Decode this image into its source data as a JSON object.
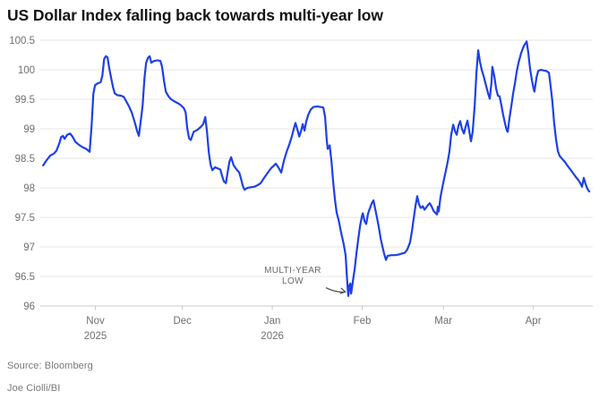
{
  "header": {
    "title": "US Dollar Index falling back towards multi-year low"
  },
  "footer": {
    "source": "Source: Bloomberg",
    "byline": "Joe Ciolli/BI"
  },
  "annotation": {
    "line1": "MULTI-YEAR",
    "line2": "LOW"
  },
  "colors": {
    "line": "#1c40e8",
    "grid": "#e5e5e5",
    "axis": "#c9c9c9",
    "tick_label": "#6f6f6f",
    "title": "#141414",
    "annotation_text": "#6a6a6a",
    "arrow": "#4a4a4a",
    "background": "#ffffff"
  },
  "chart_data": {
    "type": "line",
    "title": "US Dollar Index falling back towards multi-year low",
    "grid": "horizontal",
    "legend_position": "none",
    "x_unit": "days from chart start (mid-Oct 2025)",
    "xlim": [
      -1,
      189.5
    ],
    "ylim": [
      96,
      100.5
    ],
    "yticks": [
      {
        "value": 96,
        "label": "96"
      },
      {
        "value": 96.5,
        "label": "96.5"
      },
      {
        "value": 97,
        "label": "97"
      },
      {
        "value": 97.5,
        "label": "97.5"
      },
      {
        "value": 98,
        "label": "98"
      },
      {
        "value": 98.5,
        "label": "98.5"
      },
      {
        "value": 99,
        "label": "99"
      },
      {
        "value": 99.5,
        "label": "99.5"
      },
      {
        "value": 100,
        "label": "100"
      },
      {
        "value": 100.5,
        "label": "100.5"
      }
    ],
    "xticks": [
      {
        "day": 18,
        "label": "Nov",
        "year": "2025"
      },
      {
        "day": 48,
        "label": "Dec",
        "year": ""
      },
      {
        "day": 79,
        "label": "Jan",
        "year": "2026"
      },
      {
        "day": 110,
        "label": "Feb",
        "year": ""
      },
      {
        "day": 138,
        "label": "Mar",
        "year": ""
      },
      {
        "day": 169,
        "label": "Apr",
        "year": ""
      }
    ],
    "annotation": {
      "text": "MULTI-YEAR LOW",
      "arrow_from": [
        97.5,
        96.31
      ],
      "arrow_to": [
        104.2,
        96.24
      ],
      "points_at": "low of 96.17 in late January 2026"
    },
    "series": [
      {
        "name": "US Dollar Index",
        "points": [
          [
            0,
            98.38
          ],
          [
            1.2,
            98.47
          ],
          [
            2.5,
            98.55
          ],
          [
            3.7,
            98.58
          ],
          [
            4.6,
            98.63
          ],
          [
            5.6,
            98.76
          ],
          [
            6.2,
            98.86
          ],
          [
            6.8,
            98.88
          ],
          [
            7.4,
            98.83
          ],
          [
            8.3,
            98.9
          ],
          [
            9.3,
            98.92
          ],
          [
            10.2,
            98.86
          ],
          [
            11.1,
            98.78
          ],
          [
            12.3,
            98.73
          ],
          [
            13.6,
            98.69
          ],
          [
            14.8,
            98.66
          ],
          [
            16,
            98.61
          ],
          [
            16.7,
            99.05
          ],
          [
            17.3,
            99.6
          ],
          [
            17.9,
            99.74
          ],
          [
            18.8,
            99.77
          ],
          [
            19.8,
            99.79
          ],
          [
            20.4,
            99.9
          ],
          [
            21,
            100.18
          ],
          [
            21.6,
            100.23
          ],
          [
            22.2,
            100.21
          ],
          [
            22.8,
            100.02
          ],
          [
            23.5,
            99.84
          ],
          [
            24.1,
            99.7
          ],
          [
            24.7,
            99.6
          ],
          [
            25.6,
            99.57
          ],
          [
            26.9,
            99.56
          ],
          [
            27.8,
            99.54
          ],
          [
            28.7,
            99.46
          ],
          [
            29.6,
            99.38
          ],
          [
            30.6,
            99.27
          ],
          [
            31.5,
            99.12
          ],
          [
            32.4,
            98.96
          ],
          [
            33,
            98.88
          ],
          [
            33.6,
            99.12
          ],
          [
            34.3,
            99.4
          ],
          [
            34.9,
            99.85
          ],
          [
            35.5,
            100.12
          ],
          [
            36.1,
            100.2
          ],
          [
            36.7,
            100.23
          ],
          [
            37.3,
            100.12
          ],
          [
            38.3,
            100.15
          ],
          [
            39.5,
            100.16
          ],
          [
            40.4,
            100.15
          ],
          [
            41,
            100.05
          ],
          [
            41.7,
            99.8
          ],
          [
            42.3,
            99.63
          ],
          [
            43.2,
            99.55
          ],
          [
            44.1,
            99.5
          ],
          [
            45.4,
            99.46
          ],
          [
            46.6,
            99.43
          ],
          [
            47.5,
            99.4
          ],
          [
            48.5,
            99.35
          ],
          [
            49.1,
            99.28
          ],
          [
            49.7,
            99
          ],
          [
            50.3,
            98.84
          ],
          [
            50.9,
            98.81
          ],
          [
            51.9,
            98.95
          ],
          [
            53.1,
            98.98
          ],
          [
            54.3,
            99.03
          ],
          [
            55.2,
            99.08
          ],
          [
            55.9,
            99.2
          ],
          [
            56.5,
            98.95
          ],
          [
            57.1,
            98.6
          ],
          [
            57.7,
            98.4
          ],
          [
            58.3,
            98.3
          ],
          [
            59.3,
            98.35
          ],
          [
            60.2,
            98.33
          ],
          [
            61.1,
            98.31
          ],
          [
            61.7,
            98.2
          ],
          [
            62.3,
            98.11
          ],
          [
            63,
            98.08
          ],
          [
            63.6,
            98.26
          ],
          [
            64.2,
            98.44
          ],
          [
            64.8,
            98.52
          ],
          [
            65.7,
            98.38
          ],
          [
            66.7,
            98.31
          ],
          [
            67.6,
            98.26
          ],
          [
            68.2,
            98.16
          ],
          [
            68.8,
            98.04
          ],
          [
            69.4,
            97.97
          ],
          [
            70.4,
            98
          ],
          [
            71.6,
            98.01
          ],
          [
            72.8,
            98.02
          ],
          [
            74.1,
            98.05
          ],
          [
            75,
            98.08
          ],
          [
            75.9,
            98.15
          ],
          [
            76.9,
            98.22
          ],
          [
            77.8,
            98.28
          ],
          [
            78.7,
            98.34
          ],
          [
            79.6,
            98.38
          ],
          [
            80.2,
            98.41
          ],
          [
            81.2,
            98.34
          ],
          [
            82.1,
            98.26
          ],
          [
            83,
            98.46
          ],
          [
            84,
            98.62
          ],
          [
            84.9,
            98.74
          ],
          [
            85.8,
            98.88
          ],
          [
            86.4,
            99
          ],
          [
            87,
            99.1
          ],
          [
            87.7,
            98.98
          ],
          [
            88.3,
            98.87
          ],
          [
            88.9,
            98.96
          ],
          [
            89.5,
            99.08
          ],
          [
            90.1,
            98.97
          ],
          [
            90.7,
            99.12
          ],
          [
            91.4,
            99.24
          ],
          [
            92.3,
            99.33
          ],
          [
            93.2,
            99.37
          ],
          [
            94.4,
            99.38
          ],
          [
            95.7,
            99.37
          ],
          [
            96.6,
            99.36
          ],
          [
            97.2,
            99.2
          ],
          [
            97.8,
            98.8
          ],
          [
            98.1,
            98.66
          ],
          [
            98.8,
            98.72
          ],
          [
            99.4,
            98.45
          ],
          [
            100,
            98.1
          ],
          [
            100.6,
            97.8
          ],
          [
            101.2,
            97.58
          ],
          [
            101.9,
            97.45
          ],
          [
            102.5,
            97.3
          ],
          [
            103.1,
            97.16
          ],
          [
            103.7,
            97.03
          ],
          [
            104.3,
            96.85
          ],
          [
            104.6,
            96.6
          ],
          [
            105,
            96.3
          ],
          [
            105.2,
            96.17
          ],
          [
            105.6,
            96.35
          ],
          [
            105.9,
            96.38
          ],
          [
            106.2,
            96.21
          ],
          [
            106.8,
            96.42
          ],
          [
            107.4,
            96.62
          ],
          [
            108,
            96.88
          ],
          [
            108.6,
            97.12
          ],
          [
            109.3,
            97.36
          ],
          [
            109.9,
            97.52
          ],
          [
            110.2,
            97.57
          ],
          [
            110.8,
            97.44
          ],
          [
            111.4,
            97.39
          ],
          [
            112,
            97.56
          ],
          [
            112.7,
            97.66
          ],
          [
            113.3,
            97.74
          ],
          [
            113.9,
            97.79
          ],
          [
            114.5,
            97.64
          ],
          [
            115.1,
            97.5
          ],
          [
            115.7,
            97.34
          ],
          [
            116.4,
            97.14
          ],
          [
            117,
            97
          ],
          [
            117.6,
            96.88
          ],
          [
            118.2,
            96.78
          ],
          [
            118.8,
            96.85
          ],
          [
            120.1,
            96.86
          ],
          [
            121.3,
            96.86
          ],
          [
            122.5,
            96.87
          ],
          [
            123.8,
            96.89
          ],
          [
            124.7,
            96.9
          ],
          [
            125.6,
            96.96
          ],
          [
            126.5,
            97.08
          ],
          [
            127.2,
            97.28
          ],
          [
            127.8,
            97.5
          ],
          [
            128.4,
            97.7
          ],
          [
            129,
            97.86
          ],
          [
            129.6,
            97.72
          ],
          [
            130.2,
            97.66
          ],
          [
            130.9,
            97.69
          ],
          [
            131.5,
            97.63
          ],
          [
            132.1,
            97.67
          ],
          [
            132.7,
            97.71
          ],
          [
            133.3,
            97.74
          ],
          [
            134,
            97.68
          ],
          [
            134.6,
            97.61
          ],
          [
            135.2,
            97.58
          ],
          [
            135.8,
            97.55
          ],
          [
            136.1,
            97.68
          ],
          [
            136.4,
            97.6
          ],
          [
            137,
            97.85
          ],
          [
            137.7,
            98.02
          ],
          [
            138.3,
            98.17
          ],
          [
            138.9,
            98.3
          ],
          [
            139.5,
            98.45
          ],
          [
            140.1,
            98.62
          ],
          [
            140.7,
            98.9
          ],
          [
            141.4,
            99.07
          ],
          [
            142,
            98.96
          ],
          [
            142.6,
            98.9
          ],
          [
            143.2,
            99.05
          ],
          [
            143.8,
            99.13
          ],
          [
            144.4,
            99
          ],
          [
            145.1,
            98.92
          ],
          [
            145.7,
            99.04
          ],
          [
            146.3,
            99.14
          ],
          [
            146.9,
            98.97
          ],
          [
            147.5,
            98.79
          ],
          [
            148.1,
            98.95
          ],
          [
            148.8,
            99.4
          ],
          [
            149.4,
            99.95
          ],
          [
            150,
            100.33
          ],
          [
            150.6,
            100.14
          ],
          [
            151.2,
            100
          ],
          [
            151.9,
            99.89
          ],
          [
            152.8,
            99.72
          ],
          [
            153.4,
            99.6
          ],
          [
            154,
            99.51
          ],
          [
            154.6,
            99.8
          ],
          [
            154.9,
            100.05
          ],
          [
            155.6,
            99.88
          ],
          [
            156.2,
            99.68
          ],
          [
            156.8,
            99.56
          ],
          [
            157.4,
            99.55
          ],
          [
            158,
            99.4
          ],
          [
            158.6,
            99.24
          ],
          [
            159.3,
            99.08
          ],
          [
            159.9,
            98.97
          ],
          [
            160.2,
            98.95
          ],
          [
            160.8,
            99.18
          ],
          [
            161.4,
            99.38
          ],
          [
            162,
            99.58
          ],
          [
            162.7,
            99.78
          ],
          [
            163.3,
            99.97
          ],
          [
            163.9,
            100.12
          ],
          [
            164.8,
            100.28
          ],
          [
            165.7,
            100.4
          ],
          [
            166.7,
            100.48
          ],
          [
            167.3,
            100.28
          ],
          [
            167.9,
            100.02
          ],
          [
            168.5,
            99.83
          ],
          [
            169.1,
            99.68
          ],
          [
            169.4,
            99.63
          ],
          [
            170.1,
            99.87
          ],
          [
            170.7,
            99.98
          ],
          [
            171.6,
            100
          ],
          [
            172.5,
            99.99
          ],
          [
            173.5,
            99.98
          ],
          [
            174.4,
            99.95
          ],
          [
            175,
            99.72
          ],
          [
            175.6,
            99.45
          ],
          [
            176.2,
            99.1
          ],
          [
            176.9,
            98.8
          ],
          [
            177.5,
            98.62
          ],
          [
            178.1,
            98.54
          ],
          [
            179,
            98.49
          ],
          [
            179.9,
            98.44
          ],
          [
            180.9,
            98.37
          ],
          [
            181.8,
            98.31
          ],
          [
            182.7,
            98.25
          ],
          [
            183.6,
            98.19
          ],
          [
            184.6,
            98.13
          ],
          [
            185.2,
            98.08
          ],
          [
            185.8,
            98.02
          ],
          [
            186.4,
            98.17
          ],
          [
            187,
            98.07
          ],
          [
            187.7,
            97.98
          ],
          [
            188.3,
            97.94
          ]
        ]
      }
    ]
  }
}
